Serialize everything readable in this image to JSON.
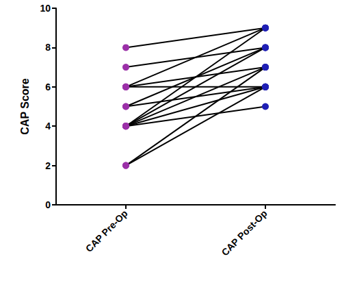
{
  "chart_data": {
    "type": "line",
    "categories": [
      "CAP Pre-Op",
      "CAP Post-Op"
    ],
    "y_label": "CAP Score",
    "ylim": [
      0,
      10
    ],
    "yticks": [
      0,
      2,
      4,
      6,
      8,
      10
    ],
    "grid": false,
    "color": "#000000",
    "colors": [
      "#9b30a8",
      "#1f1fb4"
    ],
    "marker": "circle",
    "series": [
      {
        "values": [
          8,
          9
        ]
      },
      {
        "values": [
          7,
          8
        ]
      },
      {
        "values": [
          6,
          9
        ]
      },
      {
        "values": [
          6,
          6
        ]
      },
      {
        "values": [
          6,
          7
        ]
      },
      {
        "values": [
          5,
          8
        ]
      },
      {
        "values": [
          5,
          6
        ]
      },
      {
        "values": [
          4,
          9
        ]
      },
      {
        "values": [
          4,
          8
        ]
      },
      {
        "values": [
          4,
          7
        ]
      },
      {
        "values": [
          4,
          6
        ]
      },
      {
        "values": [
          4,
          5
        ]
      },
      {
        "values": [
          2,
          7
        ]
      },
      {
        "values": [
          2,
          6
        ]
      }
    ]
  }
}
